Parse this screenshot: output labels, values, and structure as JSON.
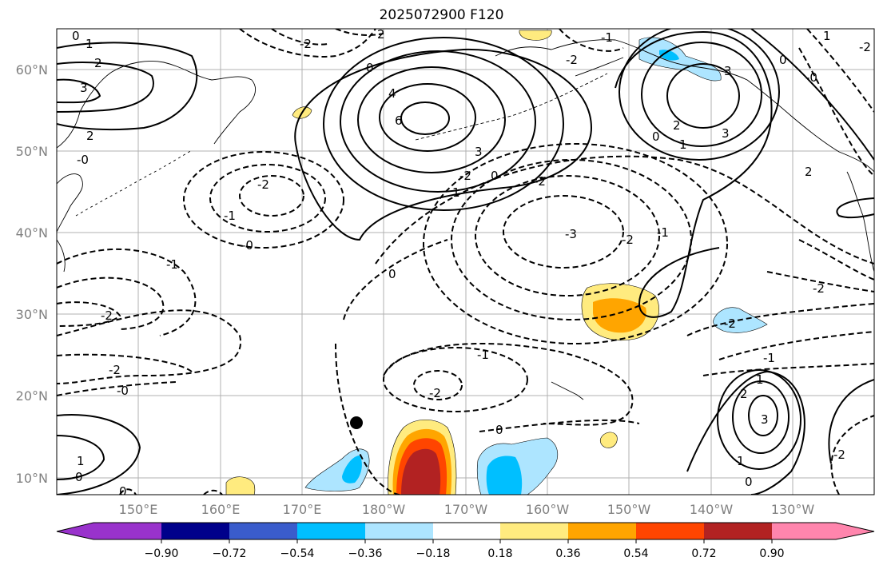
{
  "title": "2025072900 F120",
  "map": {
    "lon_ticks": [
      "150°E",
      "160°E",
      "170°E",
      "180°W",
      "170°W",
      "160°W",
      "150°W",
      "140°W",
      "130°W"
    ],
    "lat_ticks": [
      "60°N",
      "50°N",
      "40°N",
      "30°N",
      "20°N",
      "10°N"
    ],
    "contour_labels": [
      "0",
      "1",
      "2",
      "3",
      "-2",
      "2",
      "-0",
      "0",
      "4",
      "6",
      "3",
      "-2",
      "0",
      "1",
      "-2",
      "-1",
      "-3",
      "-2",
      "-1",
      "0",
      "-1",
      "-2",
      "-0",
      "-2",
      "-2",
      "-1",
      "-2",
      "-0",
      "0",
      "0",
      "1",
      "2",
      "3",
      "-2",
      "-1",
      "-2",
      "1",
      "3",
      "2",
      "1",
      "0",
      "-2",
      "0",
      "-2",
      "-1",
      "-2",
      "2",
      "3",
      "-0",
      "2",
      "1",
      "1",
      "0",
      "0"
    ],
    "colors": {
      "purple": "#9932cc",
      "navy": "#00008b",
      "royal": "#3a5ccc",
      "deepsky": "#00bfff",
      "lightblue": "#ade5ff",
      "yellow": "#ffeb7f",
      "orange": "#ffa500",
      "orangered": "#ff4500",
      "firebrick": "#b22222",
      "pink": "#ff85ad"
    }
  },
  "colorbar": {
    "labels": [
      "−0.90",
      "−0.72",
      "−0.54",
      "−0.36",
      "−0.18",
      "0.18",
      "0.36",
      "0.54",
      "0.72",
      "0.90"
    ]
  }
}
